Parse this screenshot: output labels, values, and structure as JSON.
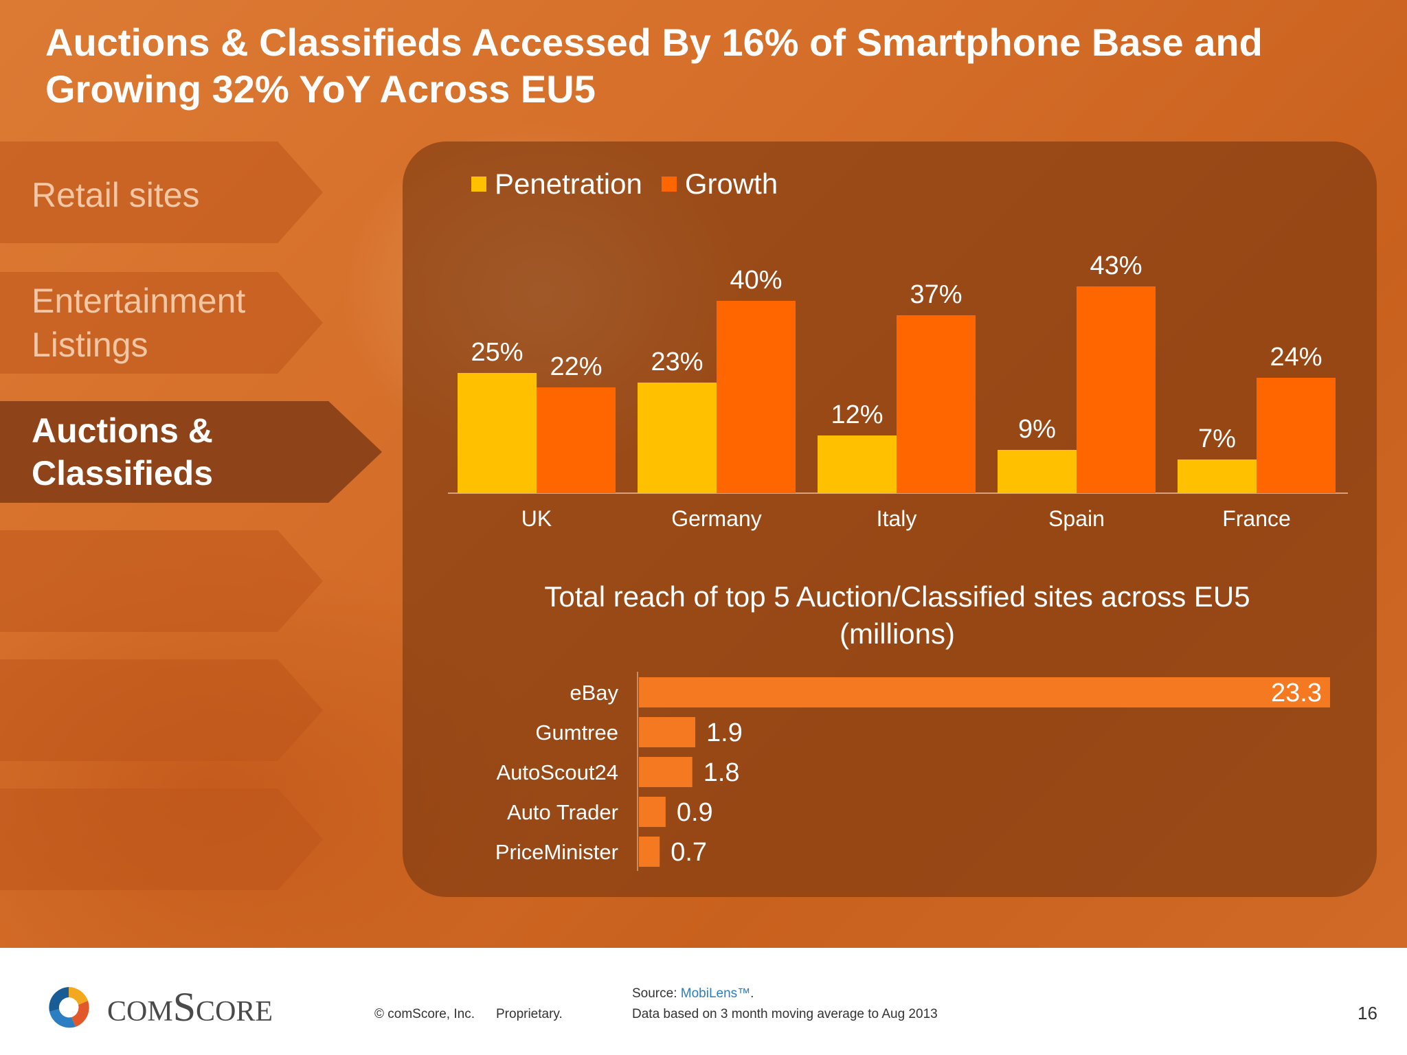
{
  "title": "Auctions & Classifieds Accessed By 16% of Smartphone Base and Growing  32% YoY Across EU5",
  "nav": {
    "items": [
      {
        "label": "Retail sites"
      },
      {
        "label": "Entertainment Listings"
      },
      {
        "label": "Auctions & Classifieds"
      },
      {
        "label": ""
      },
      {
        "label": ""
      },
      {
        "label": ""
      }
    ]
  },
  "colors": {
    "penetration": "#ffc000",
    "growth": "#ff6600",
    "reach_bar": "#f47920"
  },
  "chart_data": [
    {
      "type": "bar",
      "categories": [
        "UK",
        "Germany",
        "Italy",
        "Spain",
        "France"
      ],
      "series": [
        {
          "name": "Penetration",
          "values": [
            25,
            23,
            12,
            9,
            7
          ],
          "labels": [
            "25%",
            "23%",
            "12%",
            "9%",
            "7%"
          ]
        },
        {
          "name": "Growth",
          "values": [
            22,
            40,
            37,
            43,
            24
          ],
          "labels": [
            "22%",
            "40%",
            "37%",
            "43%",
            "24%"
          ]
        }
      ],
      "legend": "top-left",
      "grid": false
    },
    {
      "type": "bar",
      "orientation": "horizontal",
      "title": "Total reach of top 5 Auction/Classified sites across EU5 (millions)",
      "categories": [
        "eBay",
        "Gumtree",
        "AutoScout24",
        "Auto Trader",
        "PriceMinister"
      ],
      "values": [
        23.3,
        1.9,
        1.8,
        0.9,
        0.7
      ],
      "labels": [
        "23.3",
        "1.9",
        "1.8",
        "0.9",
        "0.7"
      ],
      "grid": false
    }
  ],
  "footer": {
    "logo_text": "comScore",
    "copyright": "© comScore, Inc.",
    "proprietary": "Proprietary.",
    "source_label": "Source: ",
    "source_link": "MobiLens™",
    "source_period": ".",
    "note": "Data based on 3 month moving average to Aug 2013",
    "page_number": "16"
  }
}
